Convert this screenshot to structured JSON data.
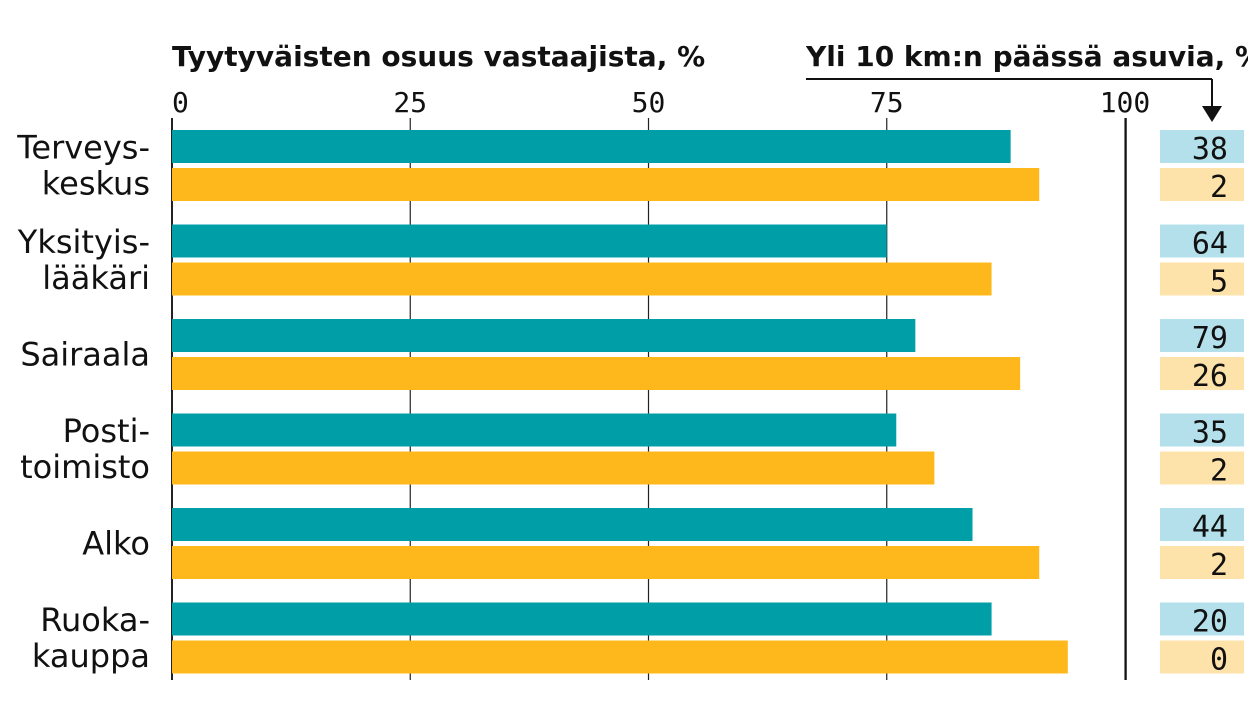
{
  "chart_data": {
    "type": "bar",
    "orientation": "horizontal",
    "x_title": "Tyytyväisten osuus vastaajista, %",
    "side_title": "Yli 10 km:n päässä asuvia, %",
    "xlim": [
      0,
      100
    ],
    "x_ticks": [
      "0",
      "25",
      "50",
      "75",
      "100"
    ],
    "categories": [
      [
        "Terveys-",
        "keskus"
      ],
      [
        "Yksityis-",
        "lääkäri"
      ],
      [
        "Sairaala"
      ],
      [
        "Posti-",
        "toimisto"
      ],
      [
        "Alko"
      ],
      [
        "Ruoka-",
        "kauppa"
      ]
    ],
    "series": [
      {
        "color": "#009fa8",
        "box_color": "#b3e0ea",
        "values": [
          88,
          75,
          78,
          76,
          84,
          86
        ],
        "far_share": [
          "38",
          "64",
          "79",
          "35",
          "44",
          "20"
        ]
      },
      {
        "color": "#ffb81c",
        "box_color": "#fde3aa",
        "values": [
          91,
          86,
          89,
          80,
          91,
          94
        ],
        "far_share": [
          "2",
          "5",
          "26",
          "2",
          "2",
          "0"
        ]
      }
    ],
    "grid": true
  }
}
